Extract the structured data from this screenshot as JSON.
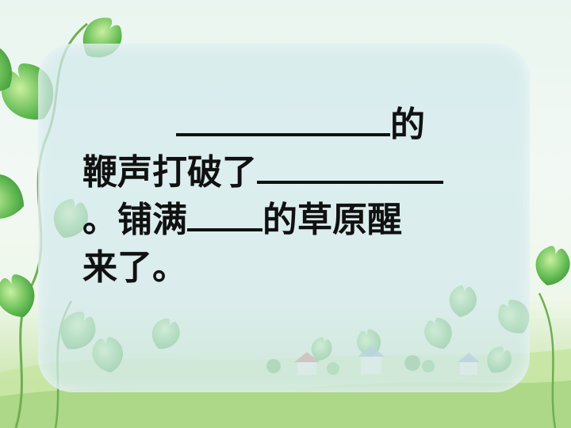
{
  "passage": {
    "line1_after_blank": "的",
    "line2_before_blank": "鞭声打破了",
    "line3_start": "。铺满",
    "line3_after_blank": "的草原醒",
    "line4": "来了。"
  },
  "colors": {
    "text": "#111111",
    "panel": "#d2e9ec",
    "leaf": "#6cc05a",
    "grass": "#b7dc94"
  }
}
